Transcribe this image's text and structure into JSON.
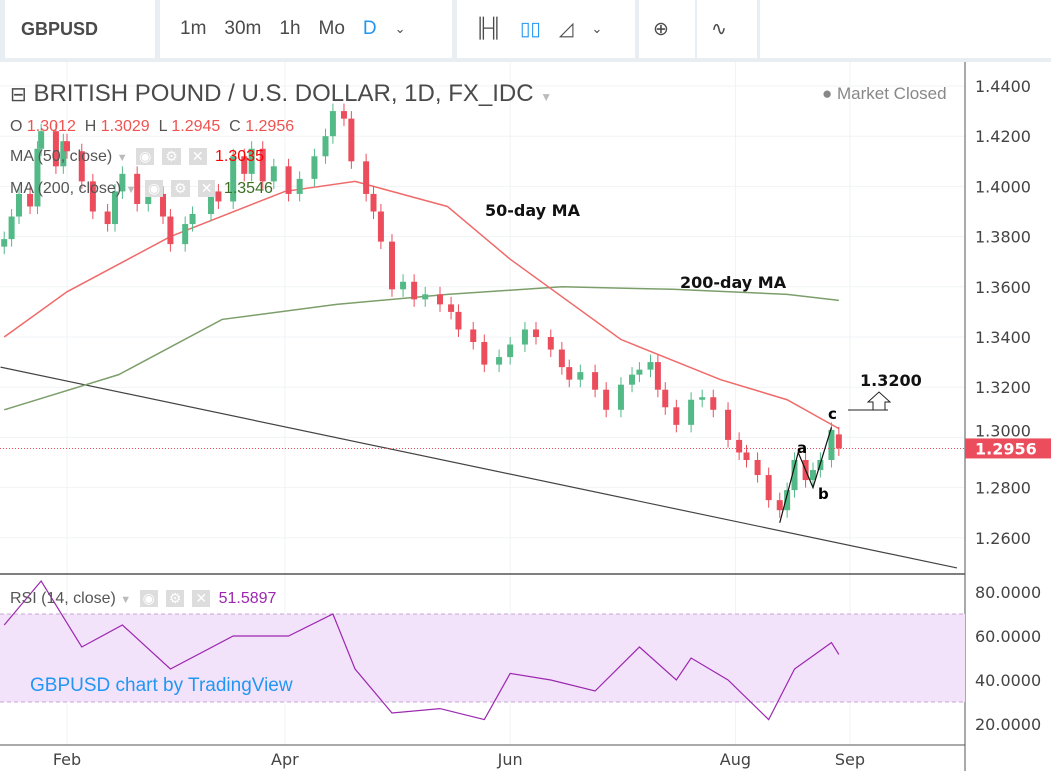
{
  "toolbar": {
    "symbol": "GBPUSD",
    "intervals": [
      "1m",
      "30m",
      "1h",
      "Mo",
      "D"
    ],
    "active_interval": "D",
    "icons": [
      "chevron-down-icon",
      "bar-chart-icon",
      "candles-icon",
      "area-chart-icon",
      "chevron-down-icon",
      "add-circle-icon",
      "indicator-wave-icon"
    ]
  },
  "legend": {
    "title": "BRITISH POUND / U.S. DOLLAR, 1D, FX_IDC",
    "market_status": "Market Closed",
    "o_label": "O",
    "o": "1.3012",
    "h_label": "H",
    "h": "1.3029",
    "l_label": "L",
    "l": "1.2945",
    "c_label": "C",
    "c": "1.2956",
    "ma50_label": "MA (50, close)",
    "ma50_value": "1.3035",
    "ma200_label": "MA (200, close)",
    "ma200_value": "1.3546",
    "rsi_label": "RSI (14, close)",
    "rsi_value": "51.5897"
  },
  "watermark": "GBPUSD chart by TradingView",
  "colors": {
    "up": "#53b987",
    "down": "#eb4d5c",
    "ma50": "#f06a6a",
    "ma200": "#7c9e6a",
    "rsi": "#9c27b0",
    "rsi_band": "#f3e3fa",
    "accent": "#2196f3"
  },
  "chart_data": {
    "type": "candlestick",
    "title": "BRITISH POUND / U.S. DOLLAR, 1D, FX_IDC",
    "y_ticks": [
      "1.2600",
      "1.2800",
      "1.3000",
      "1.3200",
      "1.3400",
      "1.3600",
      "1.3800",
      "1.4000",
      "1.4200",
      "1.4400"
    ],
    "ylim": [
      1.248,
      1.448
    ],
    "x_ticks": [
      [
        "2018-02-01",
        "Feb"
      ],
      [
        "2018-04-01",
        "Apr"
      ],
      [
        "2018-06-01",
        "Jun"
      ],
      [
        "2018-08-01",
        "Aug"
      ],
      [
        "2018-09-01",
        "Sep"
      ]
    ],
    "last_price": "1.2956",
    "closes": [
      [
        "2018-01-15",
        1.379
      ],
      [
        "2018-01-17",
        1.388
      ],
      [
        "2018-01-19",
        1.397
      ],
      [
        "2018-01-22",
        1.392
      ],
      [
        "2018-01-24",
        1.415
      ],
      [
        "2018-01-25",
        1.422
      ],
      [
        "2018-01-29",
        1.408
      ],
      [
        "2018-01-31",
        1.418
      ],
      [
        "2018-02-01",
        1.414
      ],
      [
        "2018-02-05",
        1.402
      ],
      [
        "2018-02-08",
        1.39
      ],
      [
        "2018-02-12",
        1.385
      ],
      [
        "2018-02-14",
        1.398
      ],
      [
        "2018-02-16",
        1.405
      ],
      [
        "2018-02-20",
        1.393
      ],
      [
        "2018-02-23",
        1.397
      ],
      [
        "2018-02-27",
        1.388
      ],
      [
        "2018-03-01",
        1.377
      ],
      [
        "2018-03-05",
        1.385
      ],
      [
        "2018-03-07",
        1.389
      ],
      [
        "2018-03-12",
        1.398
      ],
      [
        "2018-03-14",
        1.394
      ],
      [
        "2018-03-18",
        1.412
      ],
      [
        "2018-03-21",
        1.405
      ],
      [
        "2018-03-23",
        1.415
      ],
      [
        "2018-03-26",
        1.402
      ],
      [
        "2018-03-29",
        1.408
      ],
      [
        "2018-04-02",
        1.397
      ],
      [
        "2018-04-05",
        1.403
      ],
      [
        "2018-04-09",
        1.412
      ],
      [
        "2018-04-12",
        1.42
      ],
      [
        "2018-04-14",
        1.43
      ],
      [
        "2018-04-17",
        1.427
      ],
      [
        "2018-04-19",
        1.41
      ],
      [
        "2018-04-23",
        1.397
      ],
      [
        "2018-04-25",
        1.39
      ],
      [
        "2018-04-27",
        1.378
      ],
      [
        "2018-04-30",
        1.359
      ],
      [
        "2018-05-03",
        1.362
      ],
      [
        "2018-05-06",
        1.355
      ],
      [
        "2018-05-09",
        1.357
      ],
      [
        "2018-05-13",
        1.353
      ],
      [
        "2018-05-16",
        1.35
      ],
      [
        "2018-05-18",
        1.343
      ],
      [
        "2018-05-22",
        1.338
      ],
      [
        "2018-05-25",
        1.329
      ],
      [
        "2018-05-29",
        1.332
      ],
      [
        "2018-06-01",
        1.337
      ],
      [
        "2018-06-05",
        1.343
      ],
      [
        "2018-06-08",
        1.34
      ],
      [
        "2018-06-12",
        1.335
      ],
      [
        "2018-06-15",
        1.328
      ],
      [
        "2018-06-17",
        1.323
      ],
      [
        "2018-06-20",
        1.326
      ],
      [
        "2018-06-24",
        1.319
      ],
      [
        "2018-06-27",
        1.311
      ],
      [
        "2018-07-01",
        1.321
      ],
      [
        "2018-07-04",
        1.325
      ],
      [
        "2018-07-06",
        1.327
      ],
      [
        "2018-07-09",
        1.33
      ],
      [
        "2018-07-11",
        1.319
      ],
      [
        "2018-07-13",
        1.312
      ],
      [
        "2018-07-16",
        1.305
      ],
      [
        "2018-07-20",
        1.315
      ],
      [
        "2018-07-23",
        1.316
      ],
      [
        "2018-07-26",
        1.311
      ],
      [
        "2018-07-30",
        1.299
      ],
      [
        "2018-08-02",
        1.294
      ],
      [
        "2018-08-04",
        1.291
      ],
      [
        "2018-08-07",
        1.285
      ],
      [
        "2018-08-10",
        1.275
      ],
      [
        "2018-08-13",
        1.271
      ],
      [
        "2018-08-15",
        1.279
      ],
      [
        "2018-08-17",
        1.291
      ],
      [
        "2018-08-20",
        1.283
      ],
      [
        "2018-08-22",
        1.287
      ],
      [
        "2018-08-24",
        1.291
      ],
      [
        "2018-08-27",
        1.303
      ],
      [
        "2018-08-29",
        1.2956
      ]
    ],
    "ma50": [
      [
        "2018-01-15",
        1.34
      ],
      [
        "2018-02-01",
        1.358
      ],
      [
        "2018-03-01",
        1.38
      ],
      [
        "2018-04-01",
        1.398
      ],
      [
        "2018-04-20",
        1.402
      ],
      [
        "2018-05-15",
        1.392
      ],
      [
        "2018-06-01",
        1.371
      ],
      [
        "2018-07-01",
        1.339
      ],
      [
        "2018-07-28",
        1.323
      ],
      [
        "2018-08-15",
        1.315
      ],
      [
        "2018-08-29",
        1.3035
      ]
    ],
    "ma200": [
      [
        "2018-01-15",
        1.311
      ],
      [
        "2018-02-15",
        1.325
      ],
      [
        "2018-03-15",
        1.347
      ],
      [
        "2018-04-15",
        1.353
      ],
      [
        "2018-05-15",
        1.357
      ],
      [
        "2018-06-15",
        1.36
      ],
      [
        "2018-07-15",
        1.359
      ],
      [
        "2018-08-15",
        1.357
      ],
      [
        "2018-08-29",
        1.3546
      ]
    ],
    "trendline": [
      [
        "2018-01-14",
        1.328
      ],
      [
        "2018-09-30",
        1.248
      ]
    ],
    "annotations": {
      "ma50_label": "50-day MA",
      "ma200_label": "200-day MA",
      "target": "1.3200",
      "wave_a": "a",
      "wave_b": "b",
      "wave_c": "c"
    },
    "wave": [
      [
        "2018-08-13",
        1.266
      ],
      [
        "2018-08-18",
        1.294
      ],
      [
        "2018-08-22",
        1.28
      ],
      [
        "2018-08-27",
        1.304
      ]
    ],
    "rsi": {
      "ylim": [
        14,
        86
      ],
      "ticks": [
        "20.0000",
        "40.0000",
        "60.0000",
        "80.0000"
      ],
      "bands": [
        30,
        70
      ],
      "values": [
        [
          "2018-01-15",
          65
        ],
        [
          "2018-01-25",
          85
        ],
        [
          "2018-02-05",
          55
        ],
        [
          "2018-02-16",
          65
        ],
        [
          "2018-03-01",
          45
        ],
        [
          "2018-03-18",
          60
        ],
        [
          "2018-04-02",
          60
        ],
        [
          "2018-04-14",
          70
        ],
        [
          "2018-04-20",
          45
        ],
        [
          "2018-04-30",
          25
        ],
        [
          "2018-05-13",
          27
        ],
        [
          "2018-05-25",
          22
        ],
        [
          "2018-06-01",
          43
        ],
        [
          "2018-06-12",
          40
        ],
        [
          "2018-06-24",
          35
        ],
        [
          "2018-07-06",
          55
        ],
        [
          "2018-07-16",
          40
        ],
        [
          "2018-07-20",
          50
        ],
        [
          "2018-07-30",
          40
        ],
        [
          "2018-08-10",
          22
        ],
        [
          "2018-08-17",
          45
        ],
        [
          "2018-08-27",
          57
        ],
        [
          "2018-08-29",
          51.6
        ]
      ]
    }
  }
}
